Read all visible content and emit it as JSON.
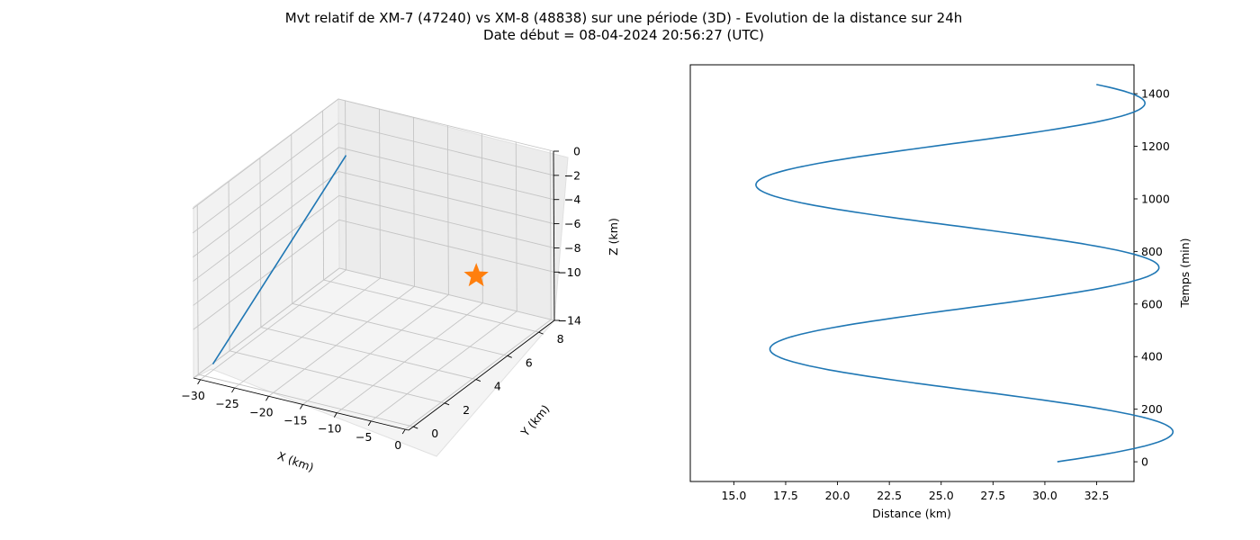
{
  "title_line1": "Mvt relatif de XM-7 (47240) vs XM-8 (48838) sur une période (3D) - Evolution de la distance sur 24h",
  "title_line2": "Date début = 08-04-2024 20:56:27 (UTC)",
  "colors": {
    "line": "#1f77b4",
    "marker": "#ff7f0e",
    "pane": "#f2f2f2",
    "grid": "#b0b0b0"
  },
  "chart_data": [
    {
      "type": "line-3d",
      "xlabel": "X (km)",
      "ylabel": "Y (km)",
      "zlabel": "Z (km)",
      "x_ticks": [
        -30,
        -25,
        -20,
        -15,
        -10,
        -5,
        0
      ],
      "y_ticks": [
        0,
        2,
        4,
        6,
        8
      ],
      "z_ticks": [
        0,
        -2,
        -4,
        -6,
        -8,
        -10,
        -14
      ],
      "trajectory": [
        {
          "x": -30,
          "y": 0.5,
          "z": -13.5
        },
        {
          "x": -29,
          "y": 8.6,
          "z": -4.0
        }
      ],
      "marker": {
        "x": -4,
        "y": 6,
        "z": -8,
        "symbol": "star"
      }
    },
    {
      "type": "line",
      "xlabel": "Distance (km)",
      "ylabel": "Temps (min)",
      "xlim": [
        12.9,
        34.3
      ],
      "ylim": [
        -75,
        1510
      ],
      "x_ticks": [
        "15.0",
        "17.5",
        "20.0",
        "22.5",
        "25.0",
        "27.5",
        "30.0",
        "32.5"
      ],
      "y_ticks": [
        0,
        200,
        400,
        600,
        800,
        1000,
        1200,
        1400
      ],
      "model": {
        "t_end": 1435,
        "s0": 30.6,
        "A": 9.55,
        "B": 1.55,
        "T": 625,
        "phase_t": 115
      }
    }
  ]
}
